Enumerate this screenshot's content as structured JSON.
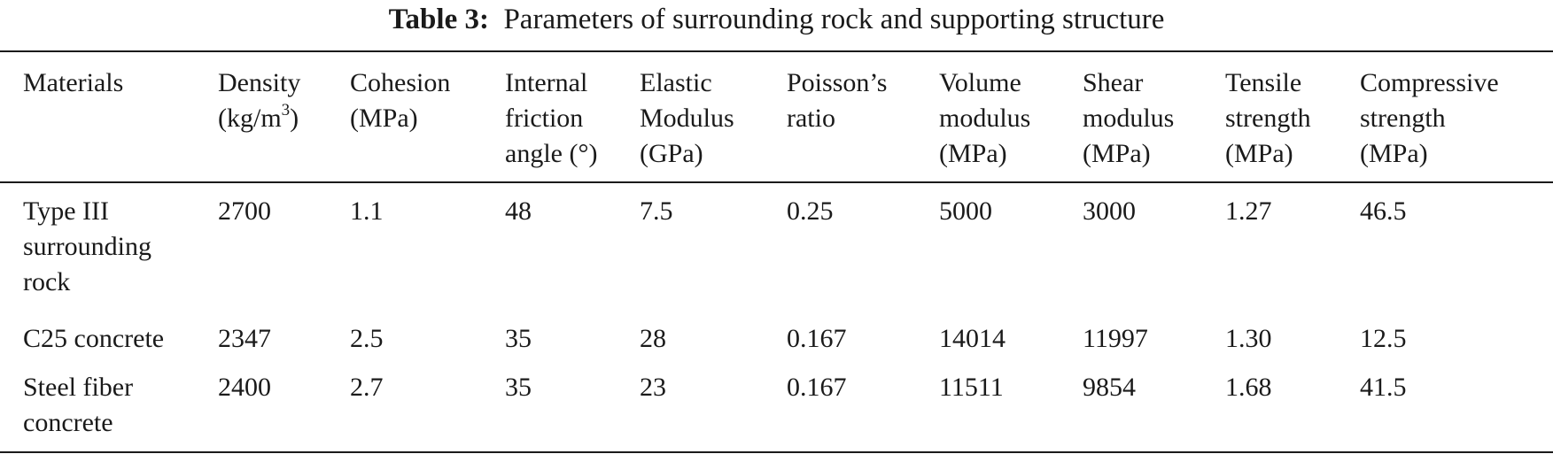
{
  "caption": {
    "label": "Table 3:",
    "text": "Parameters of surrounding rock and supporting structure"
  },
  "table": {
    "headers": [
      {
        "lines": [
          "Materials"
        ]
      },
      {
        "lines": [
          "Density",
          "(kg/m",
          "3",
          ")"
        ]
      },
      {
        "lines": [
          "Cohesion",
          "(MPa)"
        ]
      },
      {
        "lines": [
          "Internal",
          "friction",
          "angle (°)"
        ]
      },
      {
        "lines": [
          "Elastic",
          "Modulus",
          "(GPa)"
        ]
      },
      {
        "lines": [
          "Poisson’s",
          "ratio"
        ]
      },
      {
        "lines": [
          "Volume",
          "modulus",
          "(MPa)"
        ]
      },
      {
        "lines": [
          "Shear",
          "modulus",
          "(MPa)"
        ]
      },
      {
        "lines": [
          "Tensile",
          "strength",
          "(MPa)"
        ]
      },
      {
        "lines": [
          "Compressive",
          "strength",
          "(MPa)"
        ]
      }
    ],
    "rows": [
      {
        "material": [
          "Type III",
          "surrounding",
          "rock"
        ],
        "density": "2700",
        "cohesion": "1.1",
        "friction_angle": "48",
        "elastic_modulus": "7.5",
        "poisson_ratio": "0.25",
        "volume_modulus": "5000",
        "shear_modulus": "3000",
        "tensile_strength": "1.27",
        "compressive_strength": "46.5"
      },
      {
        "material": [
          "C25 concrete"
        ],
        "density": "2347",
        "cohesion": "2.5",
        "friction_angle": "35",
        "elastic_modulus": "28",
        "poisson_ratio": "0.167",
        "volume_modulus": "14014",
        "shear_modulus": "11997",
        "tensile_strength": "1.30",
        "compressive_strength": "12.5"
      },
      {
        "material": [
          "Steel fiber",
          "concrete"
        ],
        "density": "2400",
        "cohesion": "2.7",
        "friction_angle": "35",
        "elastic_modulus": "23",
        "poisson_ratio": "0.167",
        "volume_modulus": "11511",
        "shear_modulus": "9854",
        "tensile_strength": "1.68",
        "compressive_strength": "41.5"
      }
    ]
  }
}
